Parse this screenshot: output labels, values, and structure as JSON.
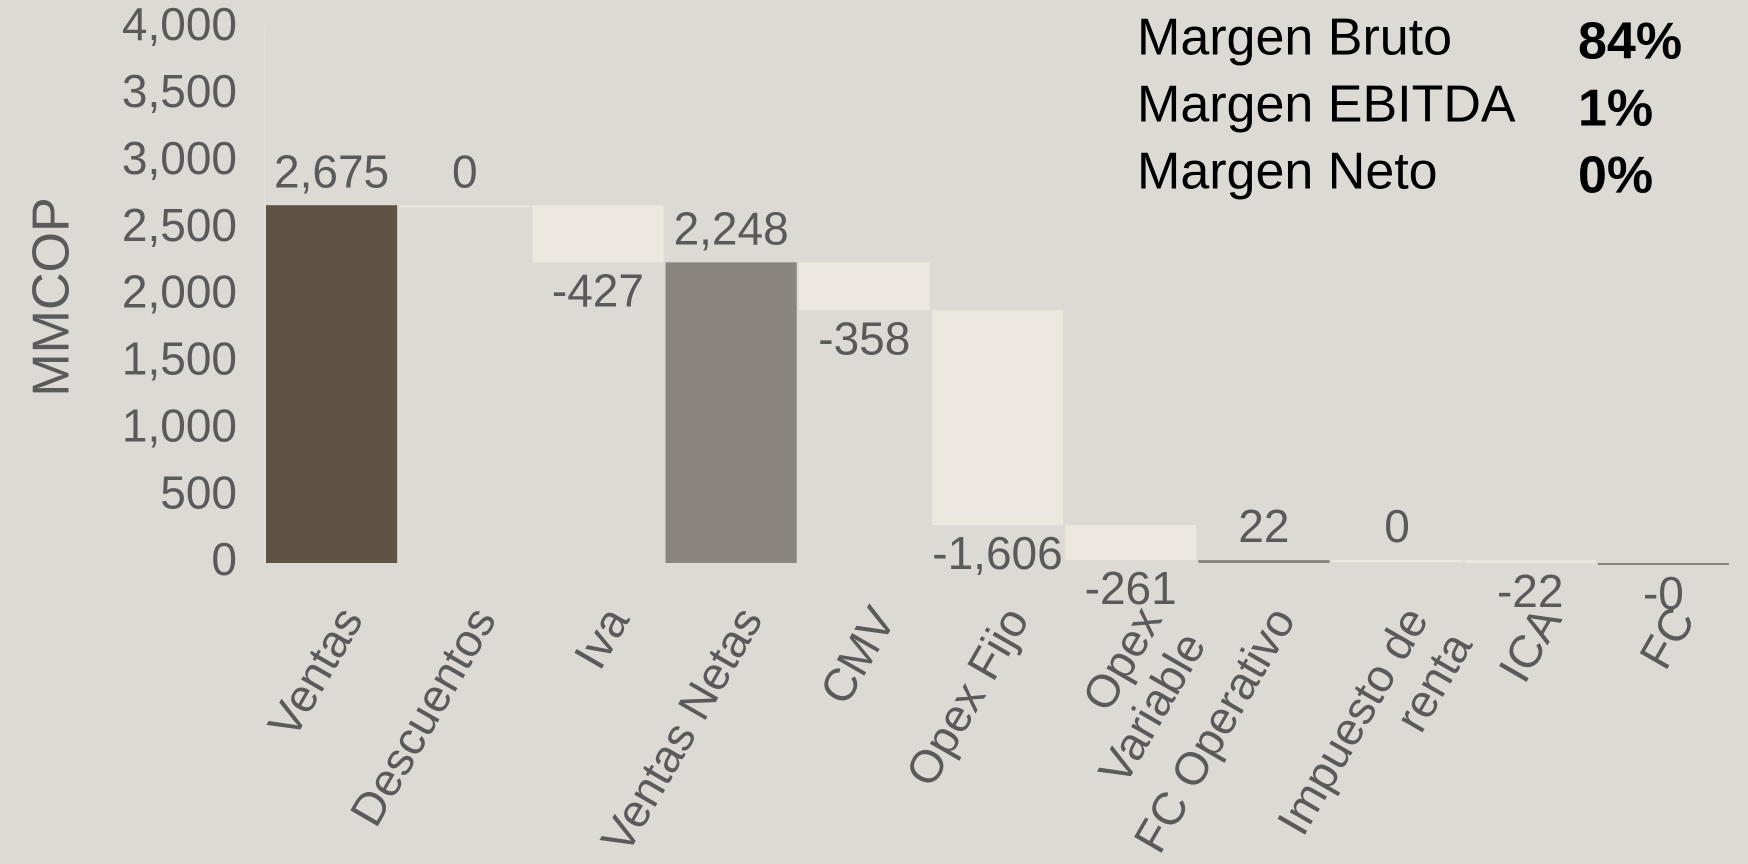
{
  "chart_data": {
    "type": "waterfall",
    "y_label": "MMCOP",
    "categories": [
      "Ventas",
      "Descuentos",
      "Iva",
      "Ventas Netas",
      "CMV",
      "Opex Fijo",
      "Opex Variable",
      "FC Operativo",
      "Impuesto de renta",
      "ICA",
      "FC"
    ],
    "values": [
      2675,
      0,
      -427,
      2248,
      -358,
      -1606,
      -261,
      22,
      0,
      -22,
      0
    ],
    "value_labels": [
      "2,675",
      "0",
      "-427",
      "2,248",
      "-358",
      "-1,606",
      "-261",
      "22",
      "0",
      "-22",
      "-0"
    ],
    "measure": [
      "total",
      "relative",
      "relative",
      "total",
      "relative",
      "relative",
      "relative",
      "total",
      "relative",
      "relative",
      "total"
    ],
    "colors": [
      "#5f5443",
      "#ece8df",
      "#ece8df",
      "#8a857f",
      "#ece8df",
      "#ece8df",
      "#ece8df",
      "#8a857f",
      "#ece8df",
      "#ece8df",
      "#8a857f"
    ],
    "ylim": [
      0,
      4000
    ],
    "yticks": [
      0,
      500,
      {
        "value": 1000,
        "label": "1,000"
      },
      {
        "value": 1500,
        "label": "1,500"
      },
      {
        "value": 2000,
        "label": "2,000"
      },
      {
        "value": 2500,
        "label": "2,500"
      },
      {
        "value": 3000,
        "label": "3,000"
      },
      {
        "value": 3500,
        "label": "3,500"
      },
      {
        "value": 4000,
        "label": "4,000"
      }
    ],
    "annotations": [
      {
        "label": "Margen Bruto",
        "value": "84%"
      },
      {
        "label": "Margen EBITDA",
        "value": "1%"
      },
      {
        "label": "Margen Neto",
        "value": "0%"
      }
    ]
  }
}
